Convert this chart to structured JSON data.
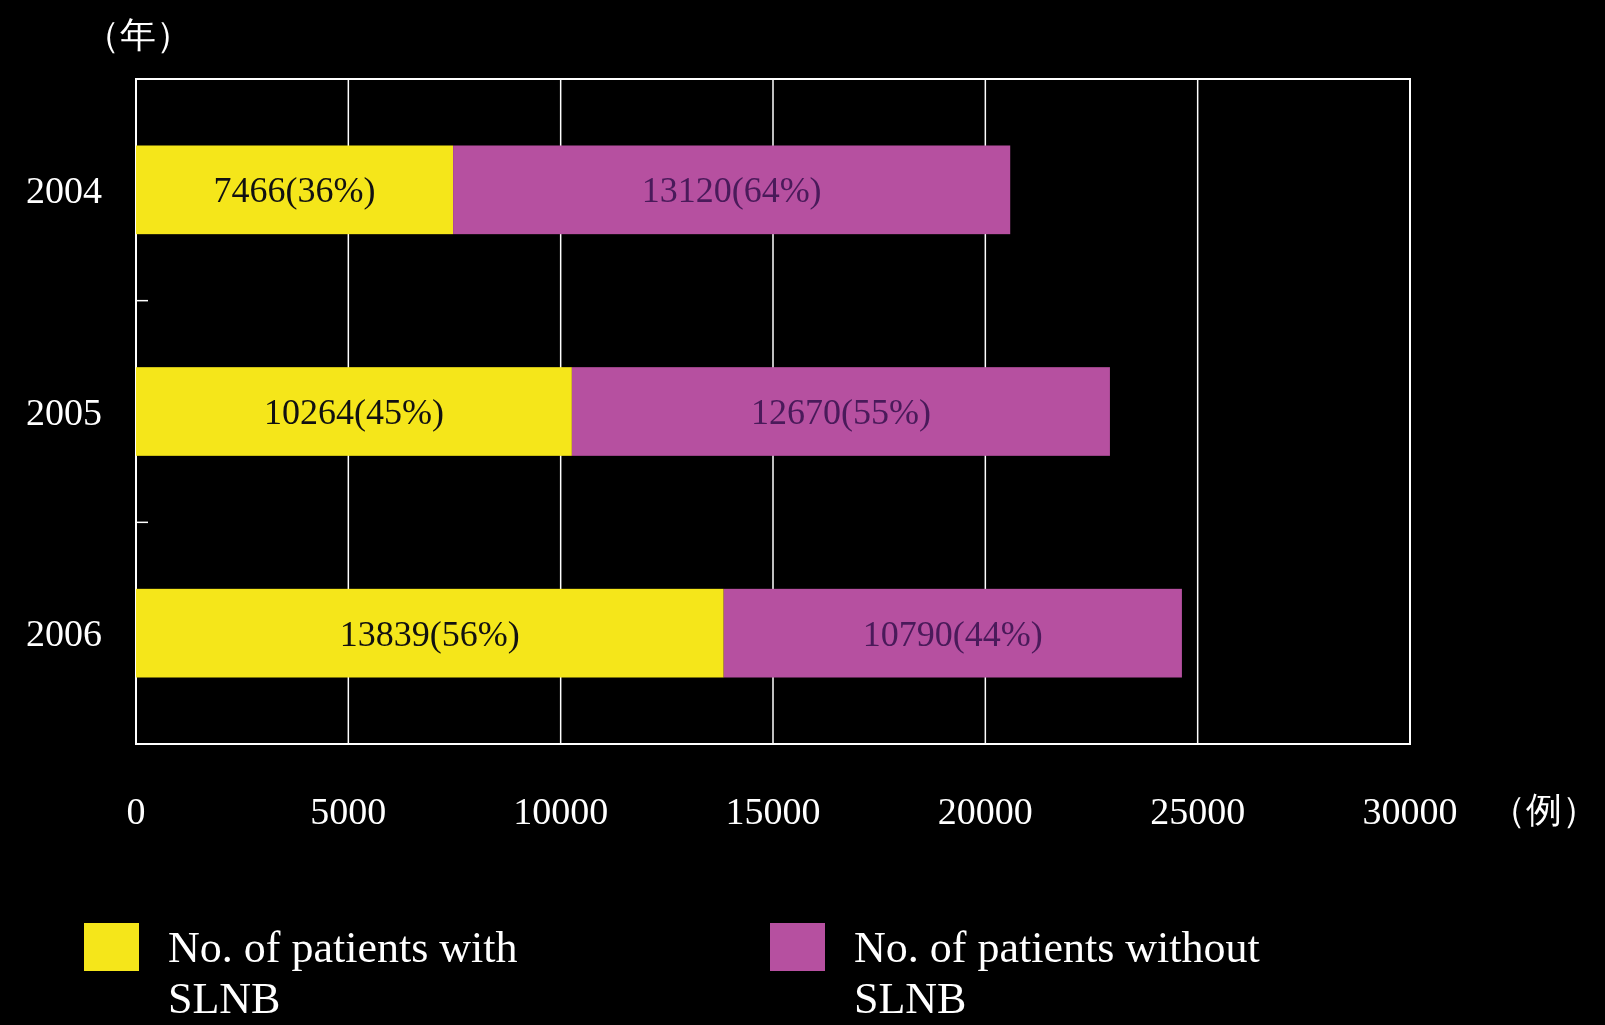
{
  "chart_data": {
    "type": "bar",
    "orientation": "horizontal",
    "stacked": true,
    "ylabel": "（年）",
    "xlabel": "（例）",
    "categories": [
      "2004",
      "2005",
      "2006"
    ],
    "series": [
      {
        "name": "No. of patients with SLNB",
        "color": "#f5e61a",
        "values": [
          7466,
          10264,
          13839
        ],
        "value_labels": [
          "7466(36%)",
          "10264(45%)",
          "13839(56%)"
        ]
      },
      {
        "name": "No. of patients without SLNB",
        "color": "#b650a0",
        "values": [
          13120,
          12670,
          10790
        ],
        "value_labels": [
          "13120(64%)",
          "12670(55%)",
          "10790(44%)"
        ]
      }
    ],
    "xlim": [
      0,
      30000
    ],
    "xticks": [
      0,
      5000,
      10000,
      15000,
      20000,
      25000,
      30000
    ],
    "grid": "x",
    "legend": "bottom"
  }
}
